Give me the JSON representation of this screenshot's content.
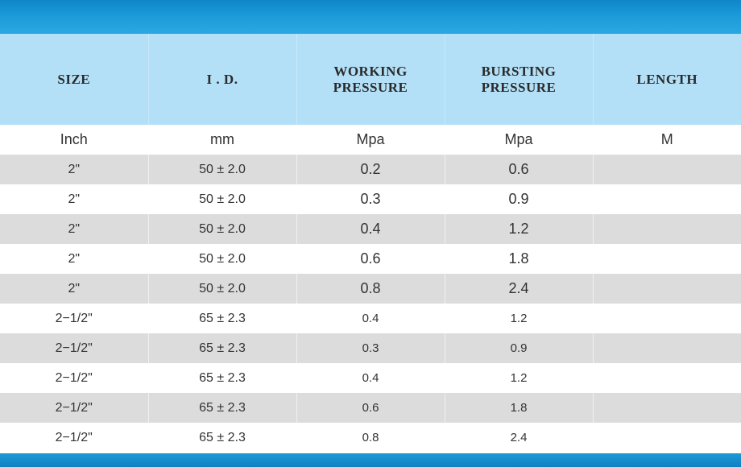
{
  "table": {
    "headers": [
      "SIZE",
      "I . D.",
      "WORKING PRESSURE",
      "BURSTING PRESSURE",
      "LENGTH"
    ],
    "units": [
      "Inch",
      "mm",
      "Mpa",
      "Mpa",
      "M"
    ],
    "rows": [
      [
        "2\"",
        "50 ± 2.0",
        "0.2",
        "0.6",
        ""
      ],
      [
        "2\"",
        "50 ± 2.0",
        "0.3",
        "0.9",
        ""
      ],
      [
        "2\"",
        "50 ± 2.0",
        "0.4",
        "1.2",
        ""
      ],
      [
        "2\"",
        "50 ± 2.0",
        "0.6",
        "1.8",
        ""
      ],
      [
        "2\"",
        "50 ± 2.0",
        "0.8",
        "2.4",
        ""
      ],
      [
        "2−1/2\"",
        "65 ± 2.3",
        "0.4",
        "1.2",
        ""
      ],
      [
        "2−1/2\"",
        "65 ± 2.3",
        "0.3",
        "0.9",
        ""
      ],
      [
        "2−1/2\"",
        "65 ± 2.3",
        "0.4",
        "1.2",
        ""
      ],
      [
        "2−1/2\"",
        "65 ± 2.3",
        "0.6",
        "1.8",
        ""
      ],
      [
        "2−1/2\"",
        "65 ± 2.3",
        "0.8",
        "2.4",
        ""
      ]
    ]
  },
  "colors": {
    "top_band": "#1b9ad8",
    "header_bg": "#b3e0f7",
    "shaded_row": "#dcdcdc",
    "plain_row": "#ffffff",
    "text": "#333333"
  }
}
